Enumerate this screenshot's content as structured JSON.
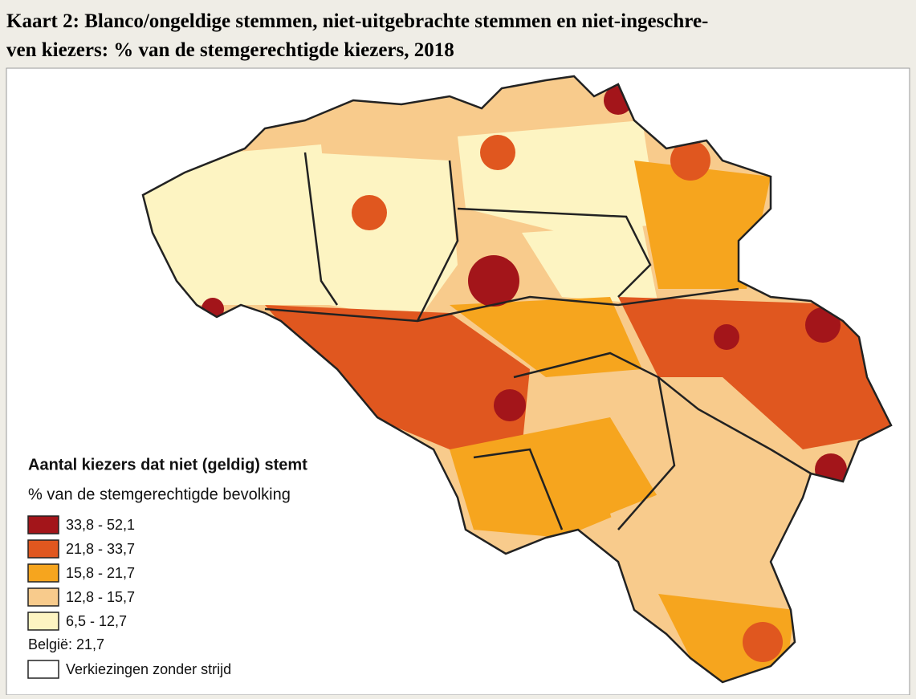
{
  "header": {
    "title_lines": [
      "Kaart 2: Blanco/ongeldige stemmen, niet-uitgebrachte stemmen en niet-ingeschre-",
      "ven kiezers: % van de stemgerechtigde kiezers, 2018"
    ]
  },
  "legend": {
    "title": "Aantal kiezers dat niet (geldig) stemt",
    "subtitle": "% van de stemgerechtigde bevolking",
    "items": [
      {
        "label": "33,8 - 52,1",
        "color": "#a3151a"
      },
      {
        "label": "21,8 - 33,7",
        "color": "#e0571f"
      },
      {
        "label": "15,8 - 21,7",
        "color": "#f6a51e"
      },
      {
        "label": "12,8 - 15,7",
        "color": "#f8cb8c"
      },
      {
        "label": "6,5 - 12,7",
        "color": "#fdf4c2"
      }
    ],
    "note": "België: 21,7",
    "outline_label": "Verkiezingen zonder strijd"
  }
}
